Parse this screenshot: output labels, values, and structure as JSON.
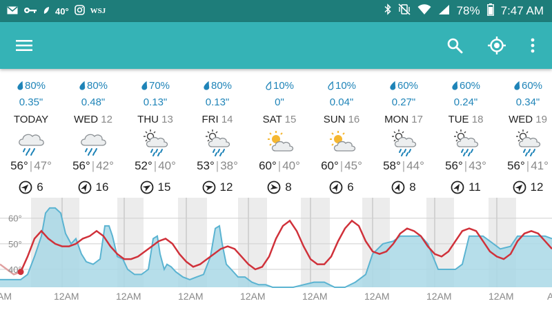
{
  "status_bar": {
    "temp": "40°",
    "wsj": "WSJ",
    "battery": "78%",
    "time": "7:47 AM"
  },
  "app_bar": {
    "icons": [
      "menu-icon",
      "search-icon",
      "my-location-icon",
      "more-vert-icon"
    ]
  },
  "days": [
    {
      "pct": "80%",
      "amount": "0.35\"",
      "name": "TODAY",
      "num": "",
      "icon": "rain-icon",
      "hi": "56°",
      "lo": "47°",
      "wind": "6",
      "wind_dir": 45
    },
    {
      "pct": "80%",
      "amount": "0.48\"",
      "name": "WED",
      "num": "12",
      "icon": "rain-icon",
      "hi": "56°",
      "lo": "42°",
      "wind": "16",
      "wind_dir": 30
    },
    {
      "pct": "70%",
      "amount": "0.13\"",
      "name": "THU",
      "num": "13",
      "icon": "sun-cloud-rain-icon",
      "hi": "52°",
      "lo": "40°",
      "wind": "15",
      "wind_dir": 60
    },
    {
      "pct": "80%",
      "amount": "0.13\"",
      "name": "FRI",
      "num": "14",
      "icon": "sun-cloud-rain-icon",
      "hi": "53°",
      "lo": "38°",
      "wind": "12",
      "wind_dir": 75
    },
    {
      "pct": "10%",
      "amount": "0\"",
      "name": "SAT",
      "num": "15",
      "icon": "partly-sunny-icon",
      "hi": "60°",
      "lo": "40°",
      "wind": "8",
      "wind_dir": 100
    },
    {
      "pct": "10%",
      "amount": "0.04\"",
      "name": "SUN",
      "num": "16",
      "icon": "partly-sunny-icon",
      "hi": "60°",
      "lo": "45°",
      "wind": "6",
      "wind_dir": 30
    },
    {
      "pct": "60%",
      "amount": "0.27\"",
      "name": "MON",
      "num": "17",
      "icon": "sun-cloud-rain-icon",
      "hi": "58°",
      "lo": "44°",
      "wind": "8",
      "wind_dir": 20
    },
    {
      "pct": "60%",
      "amount": "0.24\"",
      "name": "TUE",
      "num": "18",
      "icon": "sun-cloud-rain-icon",
      "hi": "56°",
      "lo": "43°",
      "wind": "11",
      "wind_dir": 30
    },
    {
      "pct": "60%",
      "amount": "0.34\"",
      "name": "WED",
      "num": "19",
      "icon": "sun-cloud-rain-icon",
      "hi": "56°",
      "lo": "41°",
      "wind": "12",
      "wind_dir": 45
    }
  ],
  "chart_data": {
    "type": "line",
    "ylim": [
      33,
      68
    ],
    "y_ticks": [
      "60°",
      "50°",
      "40°"
    ],
    "y_tick_values": [
      60,
      50,
      40
    ],
    "x_tick_labels": [
      "AM",
      "12AM",
      "12AM",
      "12AM",
      "12AM",
      "12AM",
      "12AM",
      "12AM",
      "12AM",
      "AM"
    ],
    "colors": {
      "temperature": "#d0313a",
      "precip_fill": "#a9d8e6",
      "precip_line": "#5ab3d1",
      "past": "#e0a0a0"
    },
    "temperature": [
      [
        0,
        42
      ],
      [
        10,
        40
      ],
      [
        20,
        38
      ],
      [
        30,
        39
      ],
      [
        40,
        45
      ],
      [
        50,
        52
      ],
      [
        60,
        55
      ],
      [
        70,
        52
      ],
      [
        80,
        50
      ],
      [
        90,
        49
      ],
      [
        100,
        49
      ],
      [
        110,
        50
      ],
      [
        120,
        52
      ],
      [
        130,
        53
      ],
      [
        140,
        55
      ],
      [
        150,
        53
      ],
      [
        160,
        49
      ],
      [
        170,
        46
      ],
      [
        180,
        44
      ],
      [
        190,
        44
      ],
      [
        200,
        45
      ],
      [
        210,
        47
      ],
      [
        220,
        49
      ],
      [
        230,
        51
      ],
      [
        240,
        52
      ],
      [
        250,
        50
      ],
      [
        260,
        46
      ],
      [
        270,
        43
      ],
      [
        280,
        41
      ],
      [
        290,
        42
      ],
      [
        300,
        44
      ],
      [
        310,
        46
      ],
      [
        320,
        48
      ],
      [
        330,
        49
      ],
      [
        340,
        48
      ],
      [
        350,
        45
      ],
      [
        360,
        42
      ],
      [
        370,
        40
      ],
      [
        380,
        41
      ],
      [
        390,
        45
      ],
      [
        400,
        52
      ],
      [
        410,
        57
      ],
      [
        420,
        59
      ],
      [
        430,
        55
      ],
      [
        440,
        49
      ],
      [
        450,
        44
      ],
      [
        460,
        42
      ],
      [
        470,
        42
      ],
      [
        480,
        45
      ],
      [
        490,
        51
      ],
      [
        500,
        56
      ],
      [
        510,
        59
      ],
      [
        520,
        57
      ],
      [
        530,
        51
      ],
      [
        540,
        47
      ],
      [
        550,
        46
      ],
      [
        560,
        47
      ],
      [
        570,
        50
      ],
      [
        580,
        54
      ],
      [
        590,
        56
      ],
      [
        600,
        55
      ],
      [
        610,
        53
      ],
      [
        620,
        49
      ],
      [
        630,
        46
      ],
      [
        640,
        45
      ],
      [
        650,
        47
      ],
      [
        660,
        51
      ],
      [
        670,
        55
      ],
      [
        680,
        56
      ],
      [
        690,
        55
      ],
      [
        700,
        51
      ],
      [
        710,
        47
      ],
      [
        720,
        45
      ],
      [
        730,
        44
      ],
      [
        740,
        46
      ],
      [
        750,
        51
      ],
      [
        760,
        54
      ],
      [
        770,
        55
      ],
      [
        780,
        54
      ],
      [
        790,
        51
      ],
      [
        800,
        48
      ]
    ],
    "precip": [
      [
        0,
        36
      ],
      [
        30,
        36
      ],
      [
        40,
        38
      ],
      [
        50,
        45
      ],
      [
        60,
        53
      ],
      [
        66,
        62
      ],
      [
        72,
        64
      ],
      [
        80,
        64
      ],
      [
        88,
        62
      ],
      [
        95,
        54
      ],
      [
        103,
        50
      ],
      [
        110,
        52
      ],
      [
        118,
        46
      ],
      [
        125,
        43
      ],
      [
        135,
        42
      ],
      [
        145,
        44
      ],
      [
        152,
        57
      ],
      [
        158,
        57
      ],
      [
        163,
        53
      ],
      [
        170,
        45
      ],
      [
        178,
        44
      ],
      [
        185,
        40
      ],
      [
        195,
        38
      ],
      [
        205,
        38
      ],
      [
        215,
        40
      ],
      [
        222,
        52
      ],
      [
        228,
        53
      ],
      [
        232,
        46
      ],
      [
        238,
        40
      ],
      [
        242,
        42
      ],
      [
        248,
        41
      ],
      [
        255,
        39
      ],
      [
        265,
        37
      ],
      [
        275,
        36
      ],
      [
        285,
        37
      ],
      [
        295,
        38
      ],
      [
        305,
        45
      ],
      [
        312,
        56
      ],
      [
        318,
        57
      ],
      [
        322,
        50
      ],
      [
        328,
        42
      ],
      [
        335,
        40
      ],
      [
        345,
        37
      ],
      [
        355,
        37
      ],
      [
        365,
        35
      ],
      [
        375,
        34
      ],
      [
        385,
        34
      ],
      [
        395,
        33
      ],
      [
        410,
        33
      ],
      [
        425,
        33
      ],
      [
        440,
        34
      ],
      [
        455,
        35
      ],
      [
        470,
        35
      ],
      [
        485,
        33
      ],
      [
        500,
        33
      ],
      [
        515,
        35
      ],
      [
        530,
        38
      ],
      [
        540,
        46
      ],
      [
        555,
        50
      ],
      [
        570,
        51
      ],
      [
        580,
        53
      ],
      [
        590,
        53
      ],
      [
        610,
        53
      ],
      [
        620,
        50
      ],
      [
        635,
        40
      ],
      [
        650,
        40
      ],
      [
        660,
        40
      ],
      [
        670,
        42
      ],
      [
        680,
        53
      ],
      [
        700,
        53
      ],
      [
        710,
        51
      ],
      [
        725,
        48
      ],
      [
        740,
        49
      ],
      [
        750,
        53
      ],
      [
        770,
        53
      ],
      [
        790,
        53
      ],
      [
        800,
        52
      ]
    ]
  }
}
